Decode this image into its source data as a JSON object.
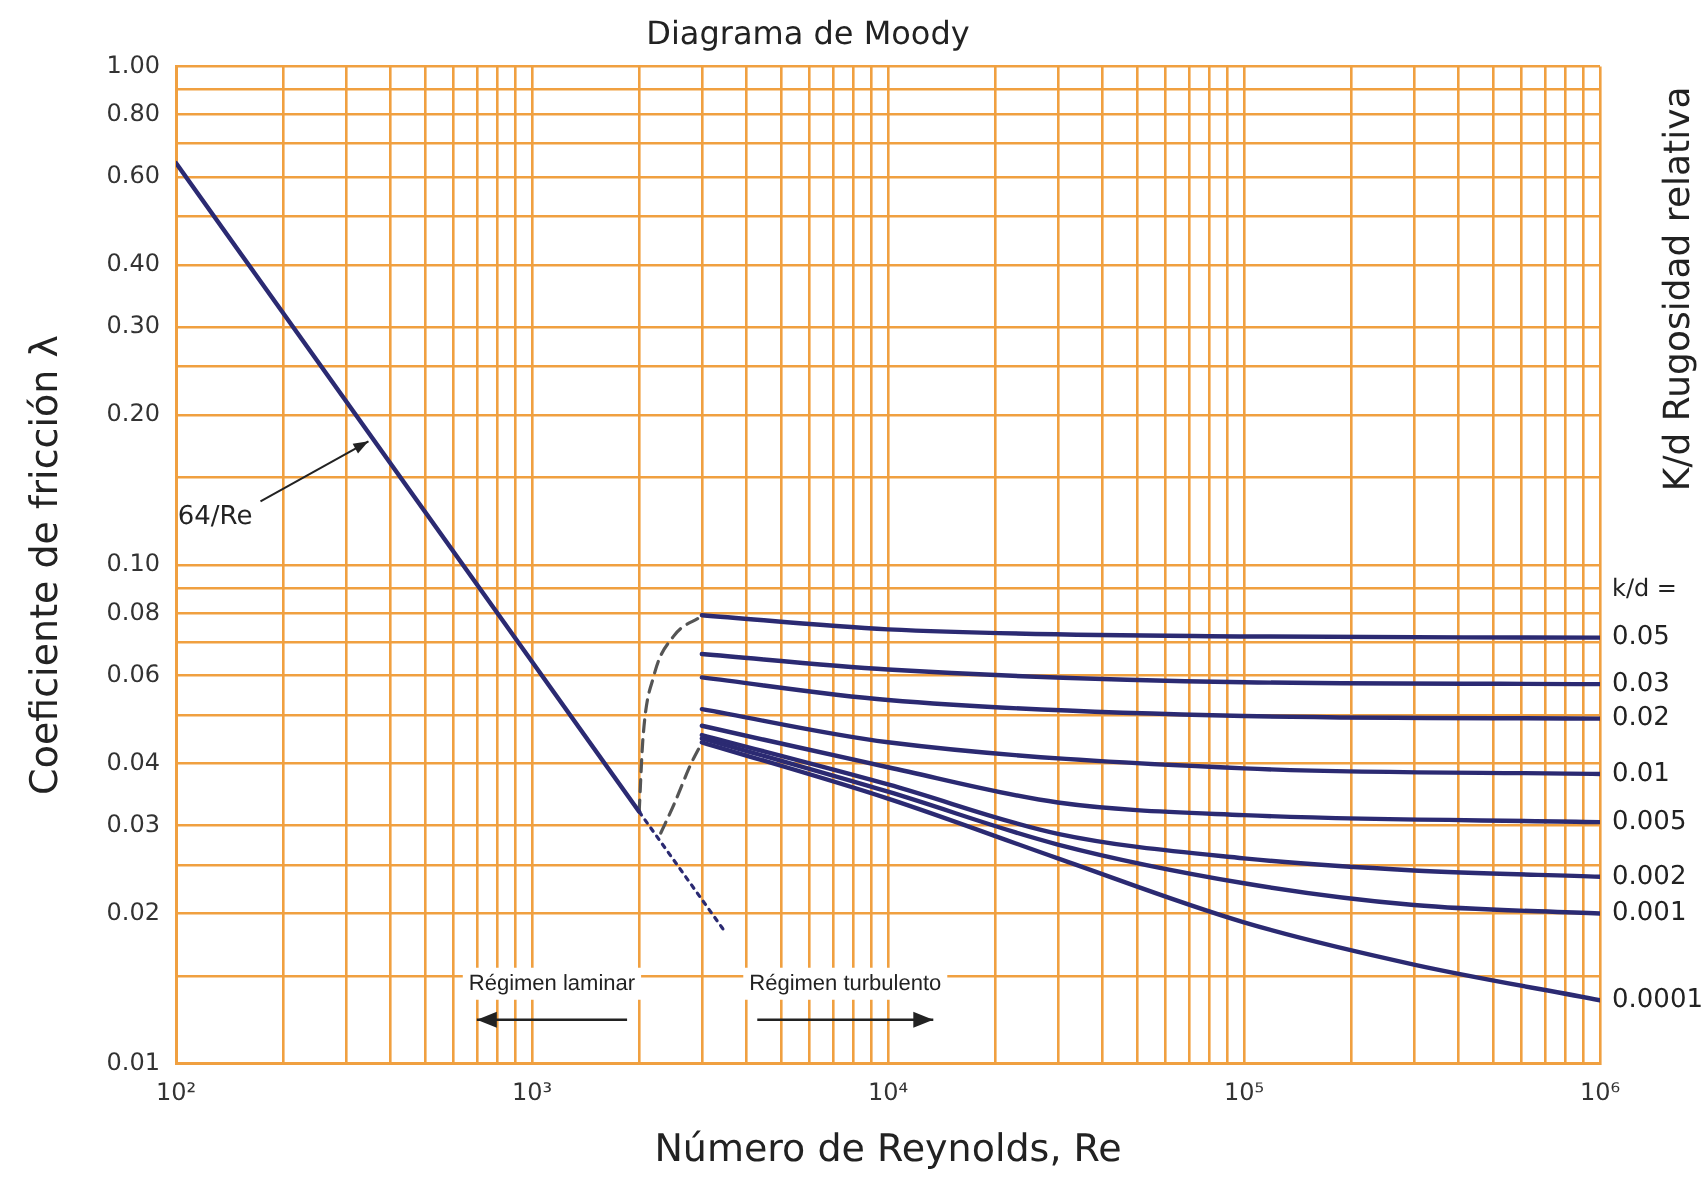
{
  "chart_data": {
    "type": "line",
    "title": "Diagrama de Moody",
    "xlabel": "Número de Reynolds, Re",
    "ylabel": "Coeficiente de fricción λ",
    "y2label": "K/d Rugosidad relativa",
    "log": "xy",
    "grid": true,
    "legend": false,
    "marker": "none",
    "xlim": [
      100,
      1000000
    ],
    "ylim": [
      0.01,
      1
    ],
    "xticks": [
      {
        "value": 100,
        "label": "10²"
      },
      {
        "value": 200,
        "label": null
      },
      {
        "value": 300,
        "label": null
      },
      {
        "value": 400,
        "label": null
      },
      {
        "value": 500,
        "label": null
      },
      {
        "value": 600,
        "label": null
      },
      {
        "value": 700,
        "label": null
      },
      {
        "value": 800,
        "label": null
      },
      {
        "value": 900,
        "label": null
      },
      {
        "value": 1000,
        "label": "10³"
      },
      {
        "value": 2000,
        "label": null
      },
      {
        "value": 3000,
        "label": null
      },
      {
        "value": 4000,
        "label": null
      },
      {
        "value": 5000,
        "label": null
      },
      {
        "value": 6000,
        "label": null
      },
      {
        "value": 7000,
        "label": null
      },
      {
        "value": 8000,
        "label": null
      },
      {
        "value": 9000,
        "label": null
      },
      {
        "value": 10000,
        "label": "10⁴"
      },
      {
        "value": 20000,
        "label": null
      },
      {
        "value": 30000,
        "label": null
      },
      {
        "value": 40000,
        "label": null
      },
      {
        "value": 50000,
        "label": null
      },
      {
        "value": 60000,
        "label": null
      },
      {
        "value": 70000,
        "label": null
      },
      {
        "value": 80000,
        "label": null
      },
      {
        "value": 90000,
        "label": null
      },
      {
        "value": 100000,
        "label": "10⁵"
      },
      {
        "value": 200000,
        "label": null
      },
      {
        "value": 300000,
        "label": null
      },
      {
        "value": 400000,
        "label": null
      },
      {
        "value": 500000,
        "label": null
      },
      {
        "value": 600000,
        "label": null
      },
      {
        "value": 700000,
        "label": null
      },
      {
        "value": 800000,
        "label": null
      },
      {
        "value": 900000,
        "label": null
      },
      {
        "value": 1000000,
        "label": "10⁶"
      }
    ],
    "yticks": [
      {
        "value": 0.01,
        "label": "0.01"
      },
      {
        "value": 0.015,
        "label": null
      },
      {
        "value": 0.02,
        "label": "0.02"
      },
      {
        "value": 0.025,
        "label": null
      },
      {
        "value": 0.03,
        "label": "0.03"
      },
      {
        "value": 0.04,
        "label": "0.04"
      },
      {
        "value": 0.05,
        "label": null
      },
      {
        "value": 0.06,
        "label": "0.06"
      },
      {
        "value": 0.07,
        "label": null
      },
      {
        "value": 0.08,
        "label": "0.08"
      },
      {
        "value": 0.09,
        "label": null
      },
      {
        "value": 0.1,
        "label": "0.10"
      },
      {
        "value": 0.15,
        "label": null
      },
      {
        "value": 0.2,
        "label": "0.20"
      },
      {
        "value": 0.25,
        "label": null
      },
      {
        "value": 0.3,
        "label": "0.30"
      },
      {
        "value": 0.4,
        "label": "0.40"
      },
      {
        "value": 0.5,
        "label": null
      },
      {
        "value": 0.6,
        "label": "0.60"
      },
      {
        "value": 0.7,
        "label": null
      },
      {
        "value": 0.8,
        "label": "0.80"
      },
      {
        "value": 0.9,
        "label": null
      },
      {
        "value": 1,
        "label": "1.00"
      }
    ],
    "series": [
      {
        "color": "#2b2a72",
        "x": [
          100,
          2000
        ],
        "values": [
          0.64,
          0.032
        ],
        "line_style": "solid"
      },
      {
        "color": "#2b2a72",
        "x": [
          2000,
          3500
        ],
        "values": [
          0.032,
          0.0183
        ],
        "line_style": "dotted"
      },
      {
        "color": "#555555",
        "x": [
          2000,
          2050,
          2200,
          2500,
          3000
        ],
        "values": [
          0.032,
          0.045,
          0.06,
          0.072,
          0.079
        ],
        "line_style": "dashed"
      },
      {
        "color": "#555555",
        "x": [
          2300,
          2500,
          2800,
          3000
        ],
        "values": [
          0.029,
          0.033,
          0.04,
          0.044
        ],
        "line_style": "dashed"
      },
      {
        "name": "0.05",
        "color": "#2b2a72",
        "x": [
          3000,
          10000,
          100000,
          1000000
        ],
        "values": [
          0.0793,
          0.0743,
          0.0719,
          0.0715
        ],
        "line_style": "solid"
      },
      {
        "name": "0.03",
        "color": "#2b2a72",
        "x": [
          3000,
          10000,
          100000,
          1000000
        ],
        "values": [
          0.0663,
          0.0617,
          0.0582,
          0.0577
        ],
        "line_style": "solid"
      },
      {
        "name": "0.02",
        "color": "#2b2a72",
        "x": [
          3000,
          10000,
          100000,
          1000000
        ],
        "values": [
          0.0595,
          0.0536,
          0.0498,
          0.0492
        ],
        "line_style": "solid"
      },
      {
        "name": "0.01",
        "color": "#2b2a72",
        "x": [
          3000,
          10000,
          100000,
          1000000
        ],
        "values": [
          0.0514,
          0.0441,
          0.0391,
          0.0381
        ],
        "line_style": "solid"
      },
      {
        "name": "0.005",
        "color": "#2b2a72",
        "x": [
          3000,
          10000,
          30000,
          100000,
          1000000
        ],
        "values": [
          0.0476,
          0.0393,
          0.0334,
          0.0315,
          0.0305
        ],
        "line_style": "solid"
      },
      {
        "name": "0.002",
        "color": "#2b2a72",
        "x": [
          3000,
          10000,
          30000,
          100000,
          300000,
          1000000
        ],
        "values": [
          0.0456,
          0.0363,
          0.0289,
          0.0258,
          0.0244,
          0.0237
        ],
        "line_style": "solid"
      },
      {
        "name": "0.001",
        "color": "#2b2a72",
        "x": [
          3000,
          10000,
          30000,
          100000,
          300000,
          1000000
        ],
        "values": [
          0.0449,
          0.0351,
          0.0275,
          0.023,
          0.0208,
          0.02
        ],
        "line_style": "solid"
      },
      {
        "name": "0.0001",
        "color": "#2b2a72",
        "x": [
          3000,
          10000,
          30000,
          100000,
          300000,
          1000000
        ],
        "values": [
          0.0441,
          0.034,
          0.0258,
          0.0192,
          0.0158,
          0.0134
        ],
        "line_style": "solid"
      }
    ],
    "annotations": [
      {
        "text": "64/Re",
        "x": 361,
        "y": 0.177
      },
      "Régimen laminar",
      "Régimen turbulento",
      "k/d ="
    ]
  }
}
